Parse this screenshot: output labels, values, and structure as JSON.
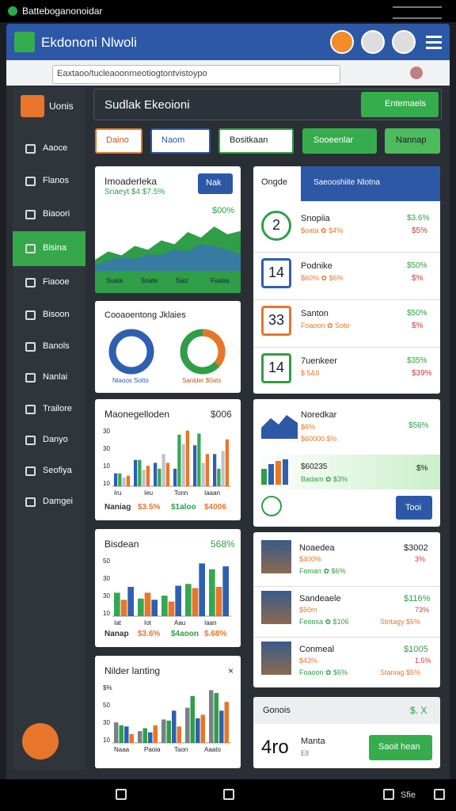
{
  "status": {
    "title": "Batteboganonoidar"
  },
  "header": {
    "title": "Ekdononi Nlwoli"
  },
  "url": "Eaxtaoo/tucleaoonrneotiogtontvistoypo",
  "sidebar": {
    "menu": "Uonis",
    "items": [
      "Aaoce",
      "Flanos",
      "Biaoori",
      "Bisina",
      "Fiaooe",
      "Bisoon",
      "Banols",
      "Nanlai",
      "Trailore",
      "Danyo",
      "Seofiya",
      "Damgei"
    ]
  },
  "topbar": {
    "title": "Sudlak Ekeoioni",
    "button": "Entemaels"
  },
  "tabs": [
    "Daino",
    "Naom",
    "Bositkaan",
    "Sooeenlar",
    "Nannap"
  ],
  "area_card": {
    "title": "Imoaderleka",
    "subtitle": "Sriaeyt $4 $7.5%",
    "button": "Nak",
    "value": "$00%",
    "x_labels": [
      "Suata",
      "Snate",
      "Saiz",
      "Fsatas"
    ],
    "ylim": [
      0,
      100
    ],
    "series": [
      {
        "color": "#2f9e46",
        "values": [
          20,
          35,
          28,
          45,
          38,
          55,
          48,
          70,
          60,
          80,
          66,
          72
        ]
      },
      {
        "color": "#3a6fc0",
        "values": [
          10,
          18,
          25,
          22,
          30,
          28,
          40,
          35,
          48,
          45,
          38,
          30
        ]
      }
    ]
  },
  "donut_card": {
    "title": "Cooaoentong Jklaies",
    "labels": [
      "Nlaoos Sotto",
      "Sanlder $0ats"
    ]
  },
  "bar_cards": [
    {
      "title": "Maonegelloden",
      "value": "$006",
      "y_labels": [
        "30",
        "30",
        "10",
        "10"
      ],
      "x_labels": [
        "Iru",
        "Ieu",
        "Tonn",
        "Iaaan"
      ],
      "footer": [
        "Naniag",
        "$3.5%",
        "$1aloo",
        "$4006"
      ],
      "ylim": [
        0,
        100
      ],
      "series": [
        {
          "color": "#2f5fb0",
          "values": [
            22,
            45,
            40,
            30,
            70,
            55
          ]
        },
        {
          "color": "#34a853",
          "values": [
            22,
            45,
            30,
            88,
            90,
            30
          ]
        },
        {
          "color": "#bfc3c8",
          "values": [
            15,
            28,
            55,
            72,
            40,
            60
          ]
        },
        {
          "color": "#e8762a",
          "values": [
            18,
            35,
            40,
            95,
            55,
            80
          ]
        }
      ]
    },
    {
      "title": "Bisdean",
      "value": "568%",
      "y_labels": [
        "50",
        "30",
        "30",
        "10"
      ],
      "x_labels": [
        "Iat",
        "Iot",
        "Aau",
        "Iaan"
      ],
      "footer": [
        "Nanap",
        "$3.6%",
        "$4aoon",
        "$.68%"
      ],
      "ylim": [
        0,
        100
      ],
      "series": [
        {
          "color": "#34a853",
          "values": [
            40,
            30,
            35,
            55,
            80
          ]
        },
        {
          "color": "#e8762a",
          "values": [
            28,
            40,
            25,
            48,
            50
          ]
        },
        {
          "color": "#2f5fb0",
          "values": [
            50,
            28,
            52,
            90,
            85
          ]
        }
      ]
    },
    {
      "title": "Nilder lanting",
      "value": "×",
      "y_labels": [
        "$%",
        "50",
        "30",
        "10"
      ],
      "x_labels": [
        "Naaa",
        "Paoia",
        "Taon",
        "Aaato"
      ],
      "footer": [],
      "ylim": [
        0,
        100
      ],
      "series": [
        {
          "color": "#7a8088",
          "values": [
            35,
            20,
            40,
            60,
            90
          ]
        },
        {
          "color": "#2f9e46",
          "values": [
            30,
            25,
            38,
            80,
            85
          ]
        },
        {
          "color": "#2f5fb0",
          "values": [
            28,
            18,
            55,
            42,
            55
          ]
        },
        {
          "color": "#e8762a",
          "values": [
            15,
            30,
            28,
            48,
            70
          ]
        }
      ]
    }
  ],
  "list_card": {
    "tab": "Ongde",
    "tab_active": "Saeooshiite Nlotna",
    "rows": [
      {
        "badge": "2",
        "name": "Snopiia",
        "sub": "$oata ✿ $4%",
        "value": "$3.6%",
        "delta": "$5%"
      },
      {
        "badge": "14",
        "name": "Podnike",
        "sub": "$60% ✿ $6%",
        "value": "$50%",
        "delta": "$%"
      },
      {
        "badge": "33",
        "name": "Santon",
        "sub": "Foaoon ✿ Soto",
        "value": "$50%",
        "delta": "$%"
      },
      {
        "badge": "14",
        "name": "7uenkeer",
        "sub": "$ 5&0",
        "value": "$35%",
        "delta": "$39%"
      }
    ]
  },
  "mini_card": {
    "title": "Noredkar",
    "line1": "$6%",
    "line2": "$60000 $%",
    "value": "$56%",
    "row_title": "$60235",
    "row_sub": "Badam ✿ $3%",
    "row_value": "$%",
    "button": "Tooi"
  },
  "media_card": {
    "rows": [
      {
        "name": "Noaedea",
        "sub": "$400%",
        "meta": "Foman ✿ $6%",
        "value": "$3002",
        "delta": "3%"
      },
      {
        "name": "Sandeaele",
        "sub": "$50m",
        "meta": "Feoosa ✿ $106",
        "value": "$116%",
        "delta": "73%",
        "extra": "Stntagy $5%"
      },
      {
        "name": "Conmeal",
        "sub": "$43%",
        "meta": "Foaoon ✿ $6%",
        "value": "$1005",
        "delta": "1.5%",
        "extra": "Staniag $5%"
      }
    ]
  },
  "note_card": {
    "title": "Gonois",
    "value": "$. X",
    "number": "4ro",
    "name": "Manta",
    "sub": "Ell",
    "button": "Saoit hean"
  },
  "nav": {
    "label": "Sfie"
  }
}
